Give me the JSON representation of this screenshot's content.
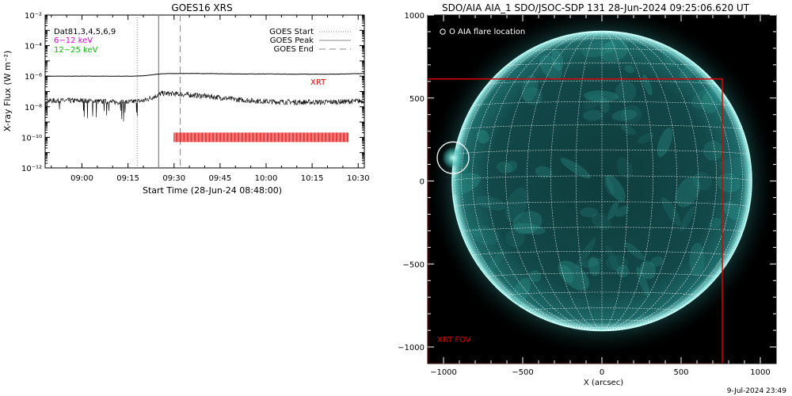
{
  "goes_panel": {
    "title": "GOES16 XRS",
    "ylabel": "X-ray Flux (W m⁻²)",
    "xlabel": "Start Time (28-Jun-24 08:48:00)",
    "legend_left": [
      {
        "text": "Dat81,3,4,5,6,9",
        "color": "#000000"
      },
      {
        "text": "6−12 keV",
        "color": "#e000e0"
      },
      {
        "text": "12−25 keV",
        "color": "#00c000"
      }
    ],
    "legend_right": [
      {
        "text": "GOES Start",
        "style": "dotted"
      },
      {
        "text": "GOES Peak",
        "style": "solid"
      },
      {
        "text": "GOES End",
        "style": "dashed"
      }
    ],
    "xrt_label": "XRT"
  },
  "aia_panel": {
    "title": "SDO/AIA AIA_1 SDO/JSOC-SDP 131 28-Jun-2024 09:25:06.620 UT",
    "flare_legend": "O AIA flare location",
    "fov_label": "XRT FOV",
    "xlabel": "X (arcsec)",
    "footer": "9-Jul-2024 23:49"
  },
  "chart_data": [
    {
      "type": "line",
      "title": "GOES16 XRS",
      "xlabel": "Start Time (28-Jun-24 08:48:00)",
      "ylabel": "X-ray Flux (W m⁻²)",
      "y_scale": "log",
      "ylim": [
        1e-12,
        0.01
      ],
      "xlim": [
        "08:48",
        "10:32"
      ],
      "x_ticks": [
        "09:00",
        "09:15",
        "09:30",
        "09:45",
        "10:00",
        "10:15",
        "10:30"
      ],
      "y_ticks": [
        "10⁻¹²",
        "10⁻¹⁰",
        "10⁻⁸",
        "10⁻⁶",
        "10⁻⁴",
        "10⁻²"
      ],
      "series": [
        {
          "x": [
            "08:48",
            "09:00",
            "09:10",
            "09:15",
            "09:20",
            "09:24",
            "09:26",
            "09:30",
            "09:35",
            "09:40",
            "09:45",
            "09:50",
            "10:00",
            "10:10",
            "10:20",
            "10:30",
            "10:32"
          ],
          "y": [
            1e-06,
            1e-06,
            1e-06,
            1e-06,
            1.05e-06,
            1.3e-06,
            1.45e-06,
            1.5e-06,
            1.5e-06,
            1.5e-06,
            1.45e-06,
            1.4e-06,
            1.4e-06,
            1.35e-06,
            1.35e-06,
            1.45e-06,
            1.5e-06
          ],
          "color": "#000000"
        },
        {
          "x": [
            "08:48",
            "09:00",
            "09:10",
            "09:15",
            "09:20",
            "09:24",
            "09:26",
            "09:30",
            "09:35",
            "09:40",
            "09:45",
            "09:50",
            "10:00",
            "10:10",
            "10:20",
            "10:30",
            "10:32"
          ],
          "y": [
            2.5e-08,
            2.5e-08,
            2e-08,
            2e-08,
            2.5e-08,
            5e-08,
            7.5e-08,
            7e-08,
            6e-08,
            5e-08,
            4e-08,
            3e-08,
            2.2e-08,
            2e-08,
            2e-08,
            2.3e-08,
            2.5e-08
          ],
          "color": "#000000"
        }
      ],
      "vlines": [
        {
          "x": "09:18",
          "style": "dotted",
          "color": "#888888"
        },
        {
          "x": "09:25",
          "style": "solid",
          "color": "#888888"
        },
        {
          "x": "09:32",
          "style": "dashed",
          "color": "#888888"
        }
      ],
      "xrt_bar": {
        "x_start": "09:30",
        "x_end": "10:27",
        "y": 1e-10,
        "color": "#e00000"
      }
    },
    {
      "type": "scatter",
      "title": "SDO/AIA AIA_1 SDO/JSOC-SDP 131 28-Jun-2024 09:25:06.620 UT",
      "xlabel": "X (arcsec)",
      "xlim": [
        -1100,
        1100
      ],
      "ylim": [
        -1100,
        1000
      ],
      "x_ticks": [
        -1000,
        -500,
        0,
        500,
        1000
      ],
      "y_ticks": [
        -1000,
        -500,
        0,
        500,
        1000
      ],
      "solar_radius_arcsec": 945,
      "grid_spacing_deg": 10,
      "flare_location": {
        "x": -940,
        "y": 140,
        "radius": 100
      },
      "xrt_fov": {
        "x_range": [
          -1100,
          760
        ],
        "y_range": [
          -1100,
          615
        ],
        "color": "#e00000"
      }
    }
  ]
}
